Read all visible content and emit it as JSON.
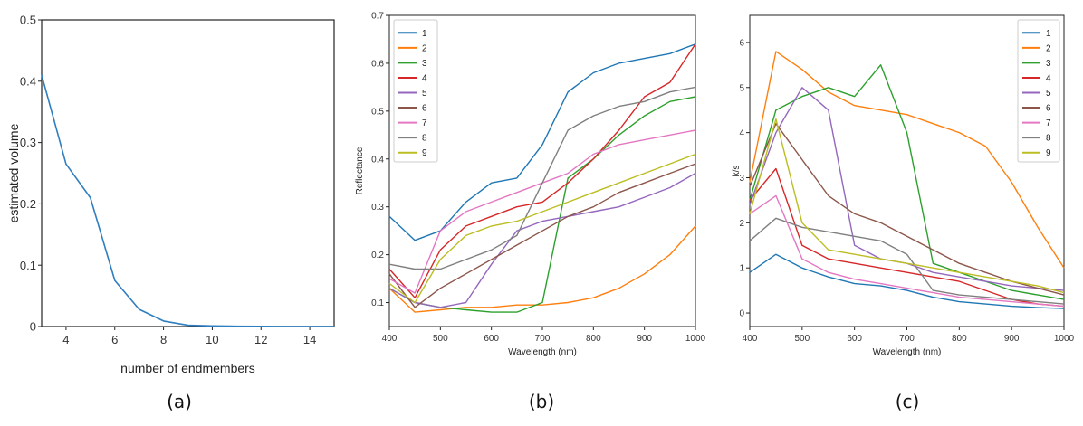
{
  "chart_data": [
    {
      "type": "line",
      "panel_label": "(a)",
      "xlabel": "number of endmembers",
      "ylabel": "estimated volume",
      "xlim": [
        3,
        15
      ],
      "ylim": [
        0,
        0.5
      ],
      "xticks": [
        4,
        6,
        8,
        10,
        12,
        14
      ],
      "yticks": [
        0,
        0.1,
        0.2,
        0.3,
        0.4,
        0.5
      ],
      "color": "#2f7ebf",
      "x": [
        3,
        4,
        5,
        6,
        7,
        8,
        9,
        10,
        11,
        12,
        13,
        14,
        15
      ],
      "values": [
        0.41,
        0.265,
        0.21,
        0.075,
        0.028,
        0.009,
        0.002,
        0.001,
        0.0005,
        0.0003,
        0.0002,
        0.0001,
        0.0001
      ]
    },
    {
      "type": "line",
      "panel_label": "(b)",
      "xlabel": "Wavelength (nm)",
      "ylabel": "Reflectance",
      "xlim": [
        400,
        1000
      ],
      "ylim": [
        0.05,
        0.7
      ],
      "xticks": [
        400,
        500,
        600,
        700,
        800,
        900,
        1000
      ],
      "yticks": [
        0.1,
        0.2,
        0.3,
        0.4,
        0.5,
        0.6,
        0.7
      ],
      "legend_position": "top-left",
      "x": [
        400,
        450,
        500,
        550,
        600,
        650,
        700,
        750,
        800,
        850,
        900,
        950,
        1000
      ],
      "series": [
        {
          "name": "1",
          "color": "#1f77b4",
          "values": [
            0.28,
            0.23,
            0.25,
            0.31,
            0.35,
            0.36,
            0.43,
            0.54,
            0.58,
            0.6,
            0.61,
            0.62,
            0.64
          ]
        },
        {
          "name": "2",
          "color": "#ff7f0e",
          "values": [
            0.13,
            0.08,
            0.085,
            0.09,
            0.09,
            0.095,
            0.095,
            0.1,
            0.11,
            0.13,
            0.16,
            0.2,
            0.26
          ]
        },
        {
          "name": "3",
          "color": "#2ca02c",
          "values": [
            0.13,
            0.1,
            0.09,
            0.085,
            0.08,
            0.08,
            0.1,
            0.36,
            0.4,
            0.45,
            0.49,
            0.52,
            0.53
          ]
        },
        {
          "name": "4",
          "color": "#d62728",
          "values": [
            0.17,
            0.11,
            0.21,
            0.26,
            0.28,
            0.3,
            0.31,
            0.35,
            0.4,
            0.46,
            0.53,
            0.56,
            0.64
          ]
        },
        {
          "name": "5",
          "color": "#9467bd",
          "values": [
            0.13,
            0.1,
            0.09,
            0.1,
            0.18,
            0.25,
            0.27,
            0.28,
            0.29,
            0.3,
            0.32,
            0.34,
            0.37
          ]
        },
        {
          "name": "6",
          "color": "#8c564b",
          "values": [
            0.16,
            0.09,
            0.13,
            0.16,
            0.19,
            0.22,
            0.25,
            0.28,
            0.3,
            0.33,
            0.35,
            0.37,
            0.39
          ]
        },
        {
          "name": "7",
          "color": "#e377c2",
          "values": [
            0.15,
            0.12,
            0.25,
            0.29,
            0.31,
            0.33,
            0.35,
            0.37,
            0.41,
            0.43,
            0.44,
            0.45,
            0.46
          ]
        },
        {
          "name": "8",
          "color": "#7f7f7f",
          "values": [
            0.18,
            0.17,
            0.17,
            0.19,
            0.21,
            0.24,
            0.35,
            0.46,
            0.49,
            0.51,
            0.52,
            0.54,
            0.55
          ]
        },
        {
          "name": "9",
          "color": "#bcbd22",
          "values": [
            0.14,
            0.1,
            0.19,
            0.24,
            0.26,
            0.27,
            0.29,
            0.31,
            0.33,
            0.35,
            0.37,
            0.39,
            0.41
          ]
        }
      ]
    },
    {
      "type": "line",
      "panel_label": "(c)",
      "xlabel": "Wavelength (nm)",
      "ylabel": "k/s",
      "xlim": [
        400,
        1000
      ],
      "ylim": [
        -0.3,
        6.6
      ],
      "xticks": [
        400,
        500,
        600,
        700,
        800,
        900,
        1000
      ],
      "yticks": [
        0,
        1,
        2,
        3,
        4,
        5,
        6
      ],
      "legend_position": "top-right",
      "x": [
        400,
        450,
        500,
        550,
        600,
        650,
        700,
        750,
        800,
        850,
        900,
        950,
        1000
      ],
      "series": [
        {
          "name": "1",
          "color": "#1f77b4",
          "values": [
            0.9,
            1.3,
            1.0,
            0.8,
            0.65,
            0.6,
            0.5,
            0.35,
            0.25,
            0.2,
            0.15,
            0.12,
            0.1
          ]
        },
        {
          "name": "2",
          "color": "#ff7f0e",
          "values": [
            2.9,
            5.8,
            5.4,
            4.9,
            4.6,
            4.5,
            4.4,
            4.2,
            4.0,
            3.7,
            2.9,
            1.9,
            1.0
          ]
        },
        {
          "name": "3",
          "color": "#2ca02c",
          "values": [
            2.5,
            4.5,
            4.8,
            5.0,
            4.8,
            5.5,
            4.0,
            1.1,
            0.9,
            0.7,
            0.5,
            0.4,
            0.3
          ]
        },
        {
          "name": "4",
          "color": "#d62728",
          "values": [
            2.5,
            3.2,
            1.5,
            1.2,
            1.1,
            1.0,
            0.9,
            0.8,
            0.7,
            0.5,
            0.3,
            0.2,
            0.15
          ]
        },
        {
          "name": "5",
          "color": "#9467bd",
          "values": [
            2.4,
            4.0,
            5.0,
            4.5,
            1.5,
            1.2,
            1.1,
            0.9,
            0.8,
            0.7,
            0.6,
            0.55,
            0.5
          ]
        },
        {
          "name": "6",
          "color": "#8c564b",
          "values": [
            2.8,
            4.2,
            3.4,
            2.6,
            2.2,
            2.0,
            1.7,
            1.4,
            1.1,
            0.9,
            0.7,
            0.55,
            0.4
          ]
        },
        {
          "name": "7",
          "color": "#e377c2",
          "values": [
            2.2,
            2.6,
            1.2,
            0.9,
            0.75,
            0.65,
            0.55,
            0.45,
            0.35,
            0.3,
            0.25,
            0.2,
            0.15
          ]
        },
        {
          "name": "8",
          "color": "#7f7f7f",
          "values": [
            1.6,
            2.1,
            1.9,
            1.8,
            1.7,
            1.6,
            1.3,
            0.5,
            0.4,
            0.35,
            0.3,
            0.25,
            0.2
          ]
        },
        {
          "name": "9",
          "color": "#bcbd22",
          "values": [
            2.2,
            4.3,
            2.0,
            1.4,
            1.3,
            1.2,
            1.1,
            1.0,
            0.9,
            0.8,
            0.7,
            0.6,
            0.45
          ]
        }
      ]
    }
  ]
}
